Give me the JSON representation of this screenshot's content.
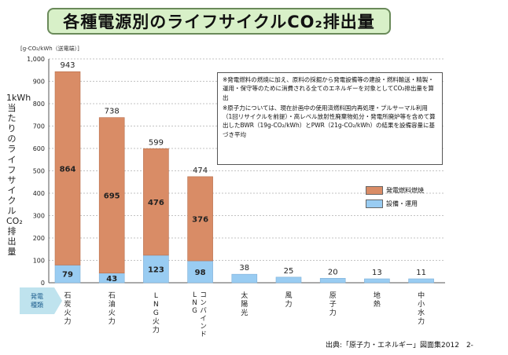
{
  "title": "各種電源別のライフサイクルCO₂排出量",
  "unit_note": "[g-CO₂/kWh（送電端）]",
  "ylabel": "1kWh当たりのライフサイクルCO₂排出量",
  "notes": [
    "※発電燃料の燃焼に加え、原料の採掘から発電設備等の建設・燃料輸送・精製・運用・保守等のために消費される全てのエネルギーを対象としてCO₂排出量を算出",
    "※原子力については、現在計画中の使用済燃料国内再処理・プルサーマル利用（1回リサイクルを前提）・高レベル放射性廃棄物処分・発電所廃炉等を含めて算出したBWR（19g-CO₂/kWh）とPWR（21g-CO₂/kWh）の結果を設備容量に基づき平均"
  ],
  "generation_label": [
    "発電",
    "種類"
  ],
  "source": "出典:「原子力・エネルギー」図面集2012　2-",
  "colors": {
    "fuel": "#d98c66",
    "equipment": "#99ccf2",
    "title_bg": "#d8f0c8"
  },
  "chart_data": {
    "type": "bar",
    "stacked": true,
    "categories": [
      "石炭火力",
      "石油火力",
      "LNG火力",
      "LNGコンバインド",
      "太陽光",
      "風力",
      "原子力",
      "地熱",
      "中小水力"
    ],
    "category_lines": [
      [
        "石",
        "炭",
        "火",
        "力"
      ],
      [
        "石",
        "油",
        "火",
        "力"
      ],
      [
        "L",
        "N",
        "G",
        "火",
        "力"
      ],
      [
        "コンバインド",
        "LNG"
      ],
      [
        "太",
        "陽",
        "光"
      ],
      [
        "風",
        "力"
      ],
      [
        "原",
        "子",
        "力"
      ],
      [
        "地",
        "熱"
      ],
      [
        "中",
        "小",
        "水",
        "力"
      ]
    ],
    "series": [
      {
        "name": "設備・運用",
        "values": [
          79,
          43,
          123,
          98,
          38,
          25,
          20,
          13,
          11
        ]
      },
      {
        "name": "発電燃料燃焼",
        "values": [
          864,
          695,
          476,
          376,
          0,
          0,
          0,
          0,
          0
        ]
      }
    ],
    "totals": [
      943,
      738,
      599,
      474,
      38,
      25,
      20,
      13,
      11
    ],
    "total_labels": [
      "943",
      "738",
      "599",
      "474",
      "38",
      "25",
      "20",
      "13",
      "11"
    ],
    "fuel_labels": [
      "864",
      "695",
      "476",
      "376",
      "",
      "",
      "",
      "",
      ""
    ],
    "equipment_labels": [
      "79",
      "43",
      "123",
      "98",
      "",
      "",
      "",
      "",
      ""
    ],
    "ylim": [
      0,
      1000
    ],
    "yticks": [
      0,
      100,
      200,
      300,
      400,
      500,
      600,
      700,
      800,
      900,
      1000
    ],
    "ytick_labels": [
      "0",
      "100",
      "200",
      "300",
      "400",
      "500",
      "600",
      "700",
      "800",
      "900",
      "1,000"
    ],
    "grid": true,
    "legend": [
      "発電燃料燃焼",
      "設備・運用"
    ],
    "legend_position": "right"
  }
}
